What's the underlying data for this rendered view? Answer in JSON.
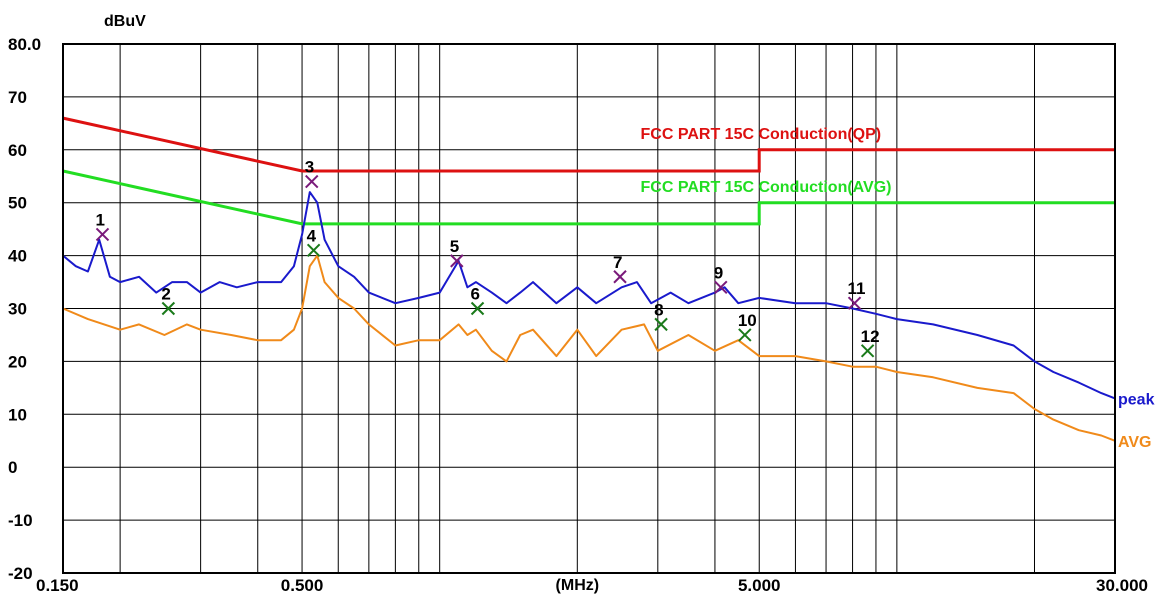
{
  "chart_data": {
    "type": "line",
    "title": "",
    "ylabel": "dBuV",
    "xlabel": "(MHz)",
    "x_scale": "log",
    "xlim": [
      0.15,
      30
    ],
    "ylim": [
      -20,
      80
    ],
    "grid": true,
    "x_tick_labels": [
      {
        "value": 0.15,
        "label": "0.150"
      },
      {
        "value": 0.5,
        "label": "0.500"
      },
      {
        "value": 5,
        "label": "5.000"
      },
      {
        "value": 30,
        "label": "30.000"
      }
    ],
    "x_unit_position": 2.0,
    "x_gridlines": [
      0.2,
      0.3,
      0.4,
      0.5,
      0.6,
      0.7,
      0.8,
      0.9,
      1,
      2,
      3,
      4,
      5,
      6,
      7,
      8,
      9,
      10,
      20
    ],
    "y_tick_labels": [
      {
        "value": 80,
        "label": "80.0"
      },
      {
        "value": 70,
        "label": "70"
      },
      {
        "value": 60,
        "label": "60"
      },
      {
        "value": 50,
        "label": "50"
      },
      {
        "value": 40,
        "label": "40"
      },
      {
        "value": 30,
        "label": "30"
      },
      {
        "value": 20,
        "label": "20"
      },
      {
        "value": 10,
        "label": "10"
      },
      {
        "value": 0,
        "label": "0"
      },
      {
        "value": -10,
        "label": "-10"
      },
      {
        "value": -20,
        "label": "-20"
      }
    ],
    "limit_lines": [
      {
        "name": "FCC PART 15C  Conduction(QP)",
        "color": "#dd1111",
        "points": [
          [
            0.15,
            66
          ],
          [
            0.5,
            56
          ],
          [
            5,
            56
          ],
          [
            5,
            60
          ],
          [
            30,
            60
          ]
        ],
        "label_anchor": [
          2.75,
          62
        ]
      },
      {
        "name": "FCC PART 15C Conduction(AVG)",
        "color": "#22dd22",
        "points": [
          [
            0.15,
            56
          ],
          [
            0.5,
            46
          ],
          [
            5,
            46
          ],
          [
            5,
            50
          ],
          [
            30,
            50
          ]
        ],
        "label_anchor": [
          2.75,
          52
        ]
      }
    ],
    "series": [
      {
        "name": "peak",
        "color": "#1a1acc",
        "points": [
          [
            0.15,
            40
          ],
          [
            0.16,
            38
          ],
          [
            0.17,
            37
          ],
          [
            0.18,
            43
          ],
          [
            0.19,
            36
          ],
          [
            0.2,
            35
          ],
          [
            0.22,
            36
          ],
          [
            0.24,
            33
          ],
          [
            0.26,
            35
          ],
          [
            0.28,
            35
          ],
          [
            0.3,
            33
          ],
          [
            0.33,
            35
          ],
          [
            0.36,
            34
          ],
          [
            0.4,
            35
          ],
          [
            0.45,
            35
          ],
          [
            0.48,
            38
          ],
          [
            0.5,
            44
          ],
          [
            0.52,
            52
          ],
          [
            0.54,
            50
          ],
          [
            0.56,
            43
          ],
          [
            0.6,
            38
          ],
          [
            0.65,
            36
          ],
          [
            0.7,
            33
          ],
          [
            0.8,
            31
          ],
          [
            0.9,
            32
          ],
          [
            1.0,
            33
          ],
          [
            1.1,
            39
          ],
          [
            1.15,
            34
          ],
          [
            1.2,
            35
          ],
          [
            1.3,
            33
          ],
          [
            1.4,
            31
          ],
          [
            1.5,
            33
          ],
          [
            1.6,
            35
          ],
          [
            1.8,
            31
          ],
          [
            2.0,
            34
          ],
          [
            2.2,
            31
          ],
          [
            2.5,
            34
          ],
          [
            2.7,
            35
          ],
          [
            2.9,
            31
          ],
          [
            3.2,
            33
          ],
          [
            3.5,
            31
          ],
          [
            4.0,
            33
          ],
          [
            4.2,
            34
          ],
          [
            4.5,
            31
          ],
          [
            5.0,
            32
          ],
          [
            6.0,
            31
          ],
          [
            7.0,
            31
          ],
          [
            8.0,
            30
          ],
          [
            9.0,
            29
          ],
          [
            10,
            28
          ],
          [
            12,
            27
          ],
          [
            15,
            25
          ],
          [
            18,
            23
          ],
          [
            20,
            20
          ],
          [
            22,
            18
          ],
          [
            25,
            16
          ],
          [
            28,
            14
          ],
          [
            30,
            13
          ]
        ]
      },
      {
        "name": "AVG",
        "color": "#f08a1a",
        "points": [
          [
            0.15,
            30
          ],
          [
            0.17,
            28
          ],
          [
            0.2,
            26
          ],
          [
            0.22,
            27
          ],
          [
            0.25,
            25
          ],
          [
            0.28,
            27
          ],
          [
            0.3,
            26
          ],
          [
            0.35,
            25
          ],
          [
            0.4,
            24
          ],
          [
            0.45,
            24
          ],
          [
            0.48,
            26
          ],
          [
            0.5,
            30
          ],
          [
            0.52,
            38
          ],
          [
            0.54,
            40
          ],
          [
            0.56,
            35
          ],
          [
            0.6,
            32
          ],
          [
            0.65,
            30
          ],
          [
            0.7,
            27
          ],
          [
            0.8,
            23
          ],
          [
            0.9,
            24
          ],
          [
            1.0,
            24
          ],
          [
            1.1,
            27
          ],
          [
            1.15,
            25
          ],
          [
            1.2,
            26
          ],
          [
            1.3,
            22
          ],
          [
            1.4,
            20
          ],
          [
            1.5,
            25
          ],
          [
            1.6,
            26
          ],
          [
            1.8,
            21
          ],
          [
            2.0,
            26
          ],
          [
            2.2,
            21
          ],
          [
            2.5,
            26
          ],
          [
            2.8,
            27
          ],
          [
            3.0,
            22
          ],
          [
            3.5,
            25
          ],
          [
            4.0,
            22
          ],
          [
            4.5,
            24
          ],
          [
            5.0,
            21
          ],
          [
            6.0,
            21
          ],
          [
            7.0,
            20
          ],
          [
            8.0,
            19
          ],
          [
            9.0,
            19
          ],
          [
            10,
            18
          ],
          [
            12,
            17
          ],
          [
            15,
            15
          ],
          [
            18,
            14
          ],
          [
            20,
            11
          ],
          [
            22,
            9
          ],
          [
            25,
            7
          ],
          [
            28,
            6
          ],
          [
            30,
            5
          ]
        ]
      }
    ],
    "markers": [
      {
        "id": "1",
        "x": 0.183,
        "y": 44,
        "type": "peak",
        "color": "#7a1a7a"
      },
      {
        "id": "2",
        "x": 0.255,
        "y": 30,
        "type": "avg",
        "color": "#1a7a1a"
      },
      {
        "id": "3",
        "x": 0.525,
        "y": 54,
        "type": "peak",
        "color": "#7a1a7a"
      },
      {
        "id": "4",
        "x": 0.53,
        "y": 41,
        "type": "avg",
        "color": "#1a7a1a"
      },
      {
        "id": "5",
        "x": 1.09,
        "y": 39,
        "type": "peak",
        "color": "#7a1a7a"
      },
      {
        "id": "6",
        "x": 1.21,
        "y": 30,
        "type": "avg",
        "color": "#1a7a1a"
      },
      {
        "id": "7",
        "x": 2.48,
        "y": 36,
        "type": "peak",
        "color": "#7a1a7a"
      },
      {
        "id": "8",
        "x": 3.05,
        "y": 27,
        "type": "avg",
        "color": "#1a7a1a"
      },
      {
        "id": "9",
        "x": 4.12,
        "y": 34,
        "type": "peak",
        "color": "#7a1a7a"
      },
      {
        "id": "10",
        "x": 4.65,
        "y": 25,
        "type": "avg",
        "color": "#1a7a1a"
      },
      {
        "id": "11",
        "x": 8.08,
        "y": 31,
        "type": "peak",
        "color": "#7a1a7a"
      },
      {
        "id": "12",
        "x": 8.63,
        "y": 22,
        "type": "avg",
        "color": "#1a7a1a"
      }
    ]
  }
}
